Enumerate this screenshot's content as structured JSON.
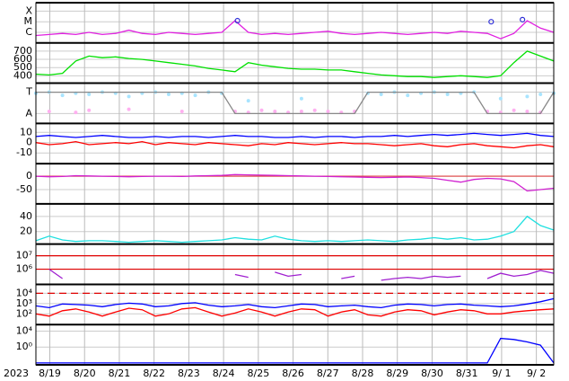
{
  "x_axis": {
    "year": "2023",
    "xlim": [
      -0.4,
      14.5
    ],
    "xticks": [
      {
        "value": 0,
        "label": "8/19"
      },
      {
        "value": 1,
        "label": "8/20"
      },
      {
        "value": 2,
        "label": "8/21"
      },
      {
        "value": 3,
        "label": "8/22"
      },
      {
        "value": 4,
        "label": "8/23"
      },
      {
        "value": 5,
        "label": "8/24"
      },
      {
        "value": 6,
        "label": "8/25"
      },
      {
        "value": 7,
        "label": "8/26"
      },
      {
        "value": 8,
        "label": "8/27"
      },
      {
        "value": 9,
        "label": "8/28"
      },
      {
        "value": 10,
        "label": "8/29"
      },
      {
        "value": 11,
        "label": "8/30"
      },
      {
        "value": 12,
        "label": "8/31"
      },
      {
        "value": 13,
        "label": "9/ 1"
      },
      {
        "value": 14,
        "label": "9/ 2"
      }
    ]
  },
  "chart_data": [
    {
      "type": "line",
      "ylim": [
        -7,
        -3.2
      ],
      "yticks": [
        {
          "value": -4,
          "label": "X"
        },
        {
          "value": -5,
          "label": "M"
        },
        {
          "value": -6,
          "label": "C"
        }
      ],
      "series": [
        {
          "color": "#e020e0",
          "values": [
            -6.3,
            -6.2,
            -6.1,
            -6.2,
            -6.0,
            -6.2,
            -6.1,
            -5.8,
            -6.1,
            -6.2,
            -6.0,
            -6.1,
            -6.2,
            -6.1,
            -6.0,
            -4.9,
            -6.0,
            -6.2,
            -6.1,
            -6.2,
            -6.1,
            -6.0,
            -5.9,
            -6.1,
            -6.2,
            -6.1,
            -6.0,
            -6.1,
            -6.2,
            -6.1,
            -6.0,
            -6.1,
            -5.9,
            -6.0,
            -6.1,
            -6.6,
            -6.1,
            -4.9,
            -5.6,
            -6.0
          ]
        },
        {
          "color": "#3030d8",
          "mode": "markers",
          "x": [
            5.4,
            12.7,
            13.6
          ],
          "values": [
            -4.9,
            -5.0,
            -4.8
          ]
        }
      ]
    },
    {
      "type": "line",
      "ylim": [
        310,
        800
      ],
      "yticks": [
        700,
        600,
        500,
        400
      ],
      "series": [
        {
          "color": "#00e000",
          "values": [
            420,
            410,
            430,
            580,
            640,
            620,
            630,
            610,
            600,
            580,
            560,
            540,
            520,
            490,
            470,
            450,
            560,
            530,
            510,
            490,
            480,
            480,
            470,
            470,
            450,
            430,
            410,
            400,
            390,
            390,
            380,
            390,
            400,
            390,
            380,
            400,
            560,
            700,
            640,
            580
          ]
        }
      ]
    },
    {
      "type": "line",
      "ylim": [
        -0.46,
        1.42
      ],
      "yticks": [
        {
          "value": 1,
          "label": "T"
        },
        {
          "value": 0,
          "label": "A"
        }
      ],
      "series": [
        {
          "color": "#a8e4ff",
          "mode": "markers",
          "values": [
            0.95,
            1.0,
            0.85,
            0.95,
            0.9,
            1.0,
            0.95,
            0.8,
            0.95,
            1.0,
            0.9,
            0.95,
            0.85,
            1.0,
            0.95,
            null,
            0.6,
            null,
            null,
            null,
            0.7,
            null,
            null,
            null,
            null,
            0.95,
            0.9,
            1.0,
            0.85,
            0.95,
            1.0,
            0.9,
            0.95,
            1.0,
            null,
            0.7,
            null,
            0.8,
            0.9,
            0.95
          ]
        },
        {
          "color": "#ffb0f0",
          "mode": "markers",
          "values": [
            null,
            0.1,
            null,
            0.05,
            0.15,
            null,
            null,
            0.2,
            null,
            null,
            null,
            0.1,
            null,
            null,
            null,
            0.1,
            0.05,
            0.15,
            0.1,
            0.05,
            0.1,
            0.15,
            0.1,
            0.05,
            0.1,
            null,
            null,
            null,
            null,
            null,
            null,
            null,
            null,
            null,
            0.1,
            0.05,
            0.15,
            0.1,
            0.05,
            null
          ]
        },
        {
          "color": "#888888",
          "values": [
            1,
            1,
            1,
            1,
            1,
            1,
            1,
            1,
            1,
            1,
            1,
            1,
            1,
            1,
            1,
            0,
            0,
            0,
            0,
            0,
            0,
            0,
            0,
            0,
            0,
            1,
            1,
            1,
            1,
            1,
            1,
            1,
            1,
            1,
            0,
            0,
            0,
            0,
            0,
            1
          ]
        }
      ]
    },
    {
      "type": "line",
      "ylim": [
        -20.4,
        18.7
      ],
      "yticks": [
        10,
        0,
        -10
      ],
      "series": [
        {
          "color": "#0000ff",
          "values": [
            6,
            7,
            6,
            5,
            6,
            7,
            6,
            5,
            5,
            6,
            5,
            6,
            6,
            5,
            6,
            7,
            6,
            6,
            5,
            5,
            6,
            5,
            6,
            6,
            5,
            6,
            6,
            7,
            6,
            7,
            8,
            7,
            8,
            9,
            8,
            7,
            8,
            9,
            7,
            6
          ]
        },
        {
          "color": "#ff0000",
          "values": [
            0,
            -2,
            -1,
            1,
            -2,
            -1,
            0,
            -1,
            1,
            -2,
            0,
            -1,
            -2,
            0,
            -1,
            -2,
            -3,
            -1,
            -2,
            0,
            -1,
            -2,
            -1,
            0,
            -1,
            -1,
            -2,
            -3,
            -2,
            -1,
            -3,
            -4,
            -2,
            -1,
            -3,
            -4,
            -5,
            -3,
            -2,
            -4
          ]
        }
      ]
    },
    {
      "type": "line",
      "ylim": [
        -103,
        46.7
      ],
      "yticks": [
        0,
        -50
      ],
      "ref_lines": [
        {
          "value": 0,
          "color": "#e04040"
        }
      ],
      "series": [
        {
          "color": "#d020d0",
          "values": [
            0,
            -2,
            -1,
            2,
            1,
            0,
            -1,
            -2,
            -1,
            0,
            0,
            -1,
            1,
            2,
            3,
            6,
            5,
            4,
            3,
            2,
            1,
            0,
            -1,
            -2,
            -3,
            -4,
            -5,
            -4,
            -3,
            -5,
            -8,
            -15,
            -22,
            -12,
            -8,
            -10,
            -20,
            -55,
            -50,
            -45
          ]
        }
      ]
    },
    {
      "type": "line",
      "ylim": [
        3.5,
        56.5
      ],
      "yticks": [
        40,
        20
      ],
      "series": [
        {
          "color": "#20e0e0",
          "values": [
            8,
            14,
            9,
            7,
            8,
            8,
            7,
            6,
            7,
            8,
            7,
            6,
            7,
            8,
            9,
            12,
            10,
            9,
            14,
            10,
            8,
            7,
            8,
            7,
            8,
            9,
            8,
            7,
            9,
            10,
            12,
            10,
            12,
            9,
            10,
            14,
            20,
            40,
            28,
            22
          ]
        }
      ]
    },
    {
      "type": "line",
      "log": true,
      "ylim": [
        74000,
        74000000
      ],
      "yticks": [
        {
          "value": 10000000,
          "label": "10⁷"
        },
        {
          "value": 1000000,
          "label": "10⁶"
        }
      ],
      "ref_lines": [
        {
          "value": 10000000,
          "color": "#e00000"
        },
        {
          "value": 1000000,
          "color": "#e00000"
        }
      ],
      "series": [
        {
          "color": "#a020d0",
          "values": [
            null,
            1000000,
            200000,
            null,
            null,
            null,
            null,
            null,
            null,
            null,
            null,
            null,
            null,
            null,
            null,
            400000,
            250000,
            null,
            600000,
            300000,
            400000,
            null,
            null,
            200000,
            300000,
            null,
            150000,
            200000,
            250000,
            200000,
            300000,
            250000,
            300000,
            null,
            200000,
            500000,
            300000,
            400000,
            800000,
            500000
          ]
        }
      ]
    },
    {
      "type": "line",
      "log": true,
      "ylim": [
        9,
        74000
      ],
      "yticks": [
        {
          "value": 10000,
          "label": "10⁴"
        },
        {
          "value": 1000,
          "label": "10³"
        },
        {
          "value": 100,
          "label": "10²"
        }
      ],
      "ref_lines": [
        {
          "value": 10000,
          "color": "#e00000",
          "dashed": true
        }
      ],
      "series": [
        {
          "color": "#0000ff",
          "values": [
            600,
            400,
            900,
            800,
            700,
            500,
            800,
            1100,
            900,
            500,
            600,
            1000,
            1200,
            700,
            500,
            600,
            800,
            500,
            400,
            600,
            900,
            800,
            500,
            600,
            700,
            500,
            400,
            700,
            900,
            800,
            600,
            800,
            900,
            700,
            600,
            500,
            600,
            900,
            1500,
            3000
          ]
        },
        {
          "color": "#ff0000",
          "values": [
            100,
            60,
            200,
            300,
            150,
            60,
            150,
            350,
            250,
            60,
            100,
            300,
            400,
            150,
            60,
            120,
            300,
            150,
            60,
            150,
            300,
            250,
            60,
            150,
            250,
            80,
            60,
            150,
            250,
            200,
            80,
            150,
            250,
            200,
            100,
            100,
            150,
            200,
            250,
            300
          ]
        }
      ]
    },
    {
      "type": "line",
      "log": true,
      "ylim": [
        3.4e-05,
        450000
      ],
      "yticks": [
        {
          "value": 10000,
          "label": "10⁴"
        },
        {
          "value": 1,
          "label": "10⁰"
        }
      ],
      "series": [
        {
          "color": "#0000ff",
          "values": [
            0.0001,
            0.0001,
            0.0001,
            0.0001,
            0.0001,
            0.0001,
            0.0001,
            0.0001,
            0.0001,
            0.0001,
            0.0001,
            0.0001,
            0.0001,
            0.0001,
            0.0001,
            0.0001,
            0.0001,
            0.0001,
            0.0001,
            0.0001,
            0.0001,
            0.0001,
            0.0001,
            0.0001,
            0.0001,
            0.0001,
            0.0001,
            0.0001,
            0.0001,
            0.0001,
            0.0001,
            0.0001,
            0.0001,
            0.0001,
            0.0001,
            150,
            80,
            20,
            3,
            0.0001
          ]
        }
      ]
    }
  ]
}
